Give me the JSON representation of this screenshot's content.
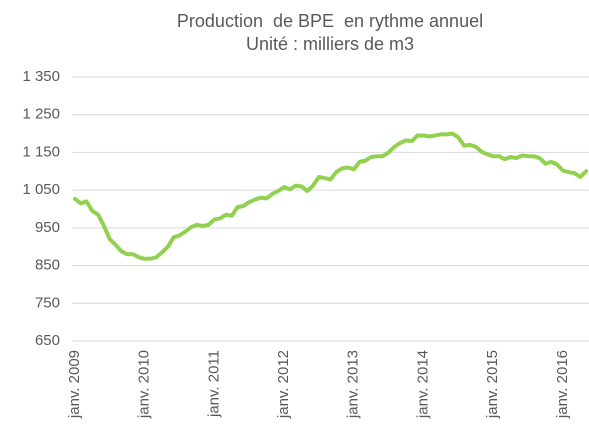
{
  "chart_data": {
    "type": "line",
    "title": "Production  de BPE  en rythme annuel",
    "subtitle": "Unité : milliers de m3",
    "categories": [
      "janv. 2009",
      null,
      null,
      null,
      null,
      null,
      null,
      null,
      null,
      null,
      null,
      null,
      "janv. 2010",
      null,
      null,
      null,
      null,
      null,
      null,
      null,
      null,
      null,
      null,
      null,
      "janv. 2011",
      null,
      null,
      null,
      null,
      null,
      null,
      null,
      null,
      null,
      null,
      null,
      "janv. 2012",
      null,
      null,
      null,
      null,
      null,
      null,
      null,
      null,
      null,
      null,
      null,
      "janv. 2013",
      null,
      null,
      null,
      null,
      null,
      null,
      null,
      null,
      null,
      null,
      null,
      "janv. 2014",
      null,
      null,
      null,
      null,
      null,
      null,
      null,
      null,
      null,
      null,
      null,
      "janv. 2015",
      null,
      null,
      null,
      null,
      null,
      null,
      null,
      null,
      null,
      null,
      null,
      "janv. 2016",
      null,
      null,
      null,
      null
    ],
    "series": [
      {
        "name": "Production de BPE",
        "color": "#92d050",
        "values": [
          1027,
          1015,
          1020,
          995,
          985,
          955,
          920,
          905,
          888,
          880,
          880,
          872,
          868,
          868,
          872,
          885,
          900,
          925,
          930,
          940,
          952,
          958,
          955,
          958,
          972,
          975,
          985,
          982,
          1005,
          1008,
          1018,
          1025,
          1030,
          1028,
          1040,
          1048,
          1058,
          1052,
          1062,
          1060,
          1048,
          1062,
          1085,
          1082,
          1078,
          1098,
          1108,
          1110,
          1105,
          1125,
          1128,
          1138,
          1140,
          1140,
          1150,
          1165,
          1175,
          1182,
          1180,
          1195,
          1195,
          1192,
          1195,
          1198,
          1198,
          1200,
          1190,
          1168,
          1170,
          1165,
          1152,
          1145,
          1140,
          1140,
          1132,
          1138,
          1135,
          1142,
          1140,
          1140,
          1135,
          1120,
          1125,
          1118,
          1102,
          1098,
          1095,
          1085,
          1100
        ]
      }
    ],
    "ylim": [
      650,
      1350
    ],
    "yticks": [
      650,
      750,
      850,
      950,
      {
        "value": 1050,
        "label": "1 050"
      },
      {
        "value": 1150,
        "label": "1 150"
      },
      {
        "value": 1250,
        "label": "1 250"
      },
      {
        "value": 1350,
        "label": "1 350"
      }
    ],
    "grid": true
  }
}
